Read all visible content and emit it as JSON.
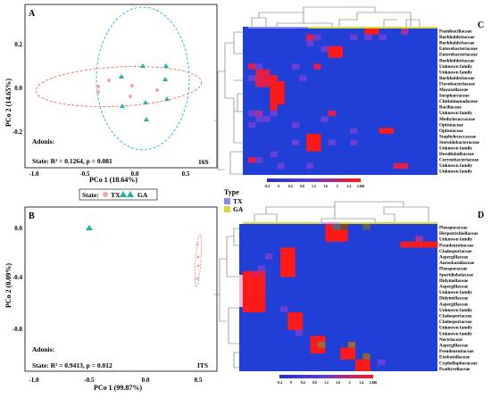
{
  "panel_a": {
    "letter": "A",
    "ylabel": "PCo 2 (14.65%)",
    "xlabel": "PCo 1 (18.64%)",
    "xticks": [
      "-1.0",
      "-0.5",
      "0.0",
      "0.5"
    ],
    "yticks": [
      "0.2",
      "0.0",
      "-0.2"
    ],
    "stat_title": "Adonis:",
    "stat_text": "State: R² = 0.1264, p = 0.081",
    "tag": "16S"
  },
  "legend_state": {
    "title": "State:",
    "tx": "TX",
    "ga": "GA"
  },
  "panel_b": {
    "letter": "B",
    "ylabel": "PCo 2 (0.09%)",
    "xlabel": "PCo 1 (99.87%)",
    "xticks": [
      "-1.0",
      "-0.5",
      "0.0",
      "0.5"
    ],
    "yticks": [
      "0.0",
      "-0.4",
      "-0.8"
    ],
    "stat_title": "Adonis:",
    "stat_text": "State: R² = 0.9413, p = 0.012",
    "tag": "ITS"
  },
  "panel_c": {
    "letter": "C",
    "rows": [
      "Paenibacillaceae",
      "Burkholderiaceae",
      "Burkholderiaceae",
      "Enterobacteriaceae",
      "Enterobacteriaceae",
      "Burkholderiaceae",
      "Unknown family",
      "Unknown family",
      "Burkholderiaceae",
      "Flavobacteriaceae",
      "Moraxellaceae",
      "Isosphaeraceae",
      "Chitinimonadaceae",
      "Bacillaceae",
      "Unknown family",
      "Methylococcaceae",
      "Opitutaceae",
      "Opitutaceae",
      "Staphylococcaceae",
      "Steroidobacteraceae",
      "Unknown family",
      "Desulfobulbaceae",
      "Corynebacteriaceae",
      "Unknown family",
      "Unknown family"
    ],
    "scale_ticks": [
      "-0.4",
      "0",
      "0.4",
      "0.8",
      "1.2",
      "1.6",
      "2",
      "2.4",
      "2.846"
    ]
  },
  "legend_type": {
    "title": "Type",
    "tx": "TX",
    "ga": "GA"
  },
  "panel_d": {
    "letter": "D",
    "rows": [
      "Pleosporaceae",
      "Herpotrichiellaceae",
      "Unknown family",
      "Pseudeurotiaceae",
      "Cladosporiaceae",
      "Aspergillaceae",
      "Aureobasidiaceae",
      "Pleosporaceae",
      "Sporidiobolaceae",
      "Didymellaceae",
      "Aspergillaceae",
      "Unknown family",
      "Didymellaceae",
      "Aspergillaceae",
      "Unknown family",
      "Cladosporiaceae",
      "Cladosporiaceae",
      "Unknown family",
      "Unknown family",
      "Nectriaceae",
      "Aspergillaceae",
      "Pseudeurotiaceae",
      "Exobasidiaceae",
      "Cyphellophoraceae",
      "Psathyrellaceae"
    ],
    "scale_ticks": [
      "-0.4",
      "0",
      "0.4",
      "0.8",
      "1.2",
      "1.6",
      "2",
      "2.4",
      "2.846"
    ]
  },
  "colors": {
    "tx": "#f4a6a6",
    "ga": "#20b2aa",
    "tx_ellipse": "#e8735f",
    "ga_ellipse": "#1fb5d8",
    "heat_low": "#1f3fd6",
    "heat_high": "#ff1a1a"
  }
}
